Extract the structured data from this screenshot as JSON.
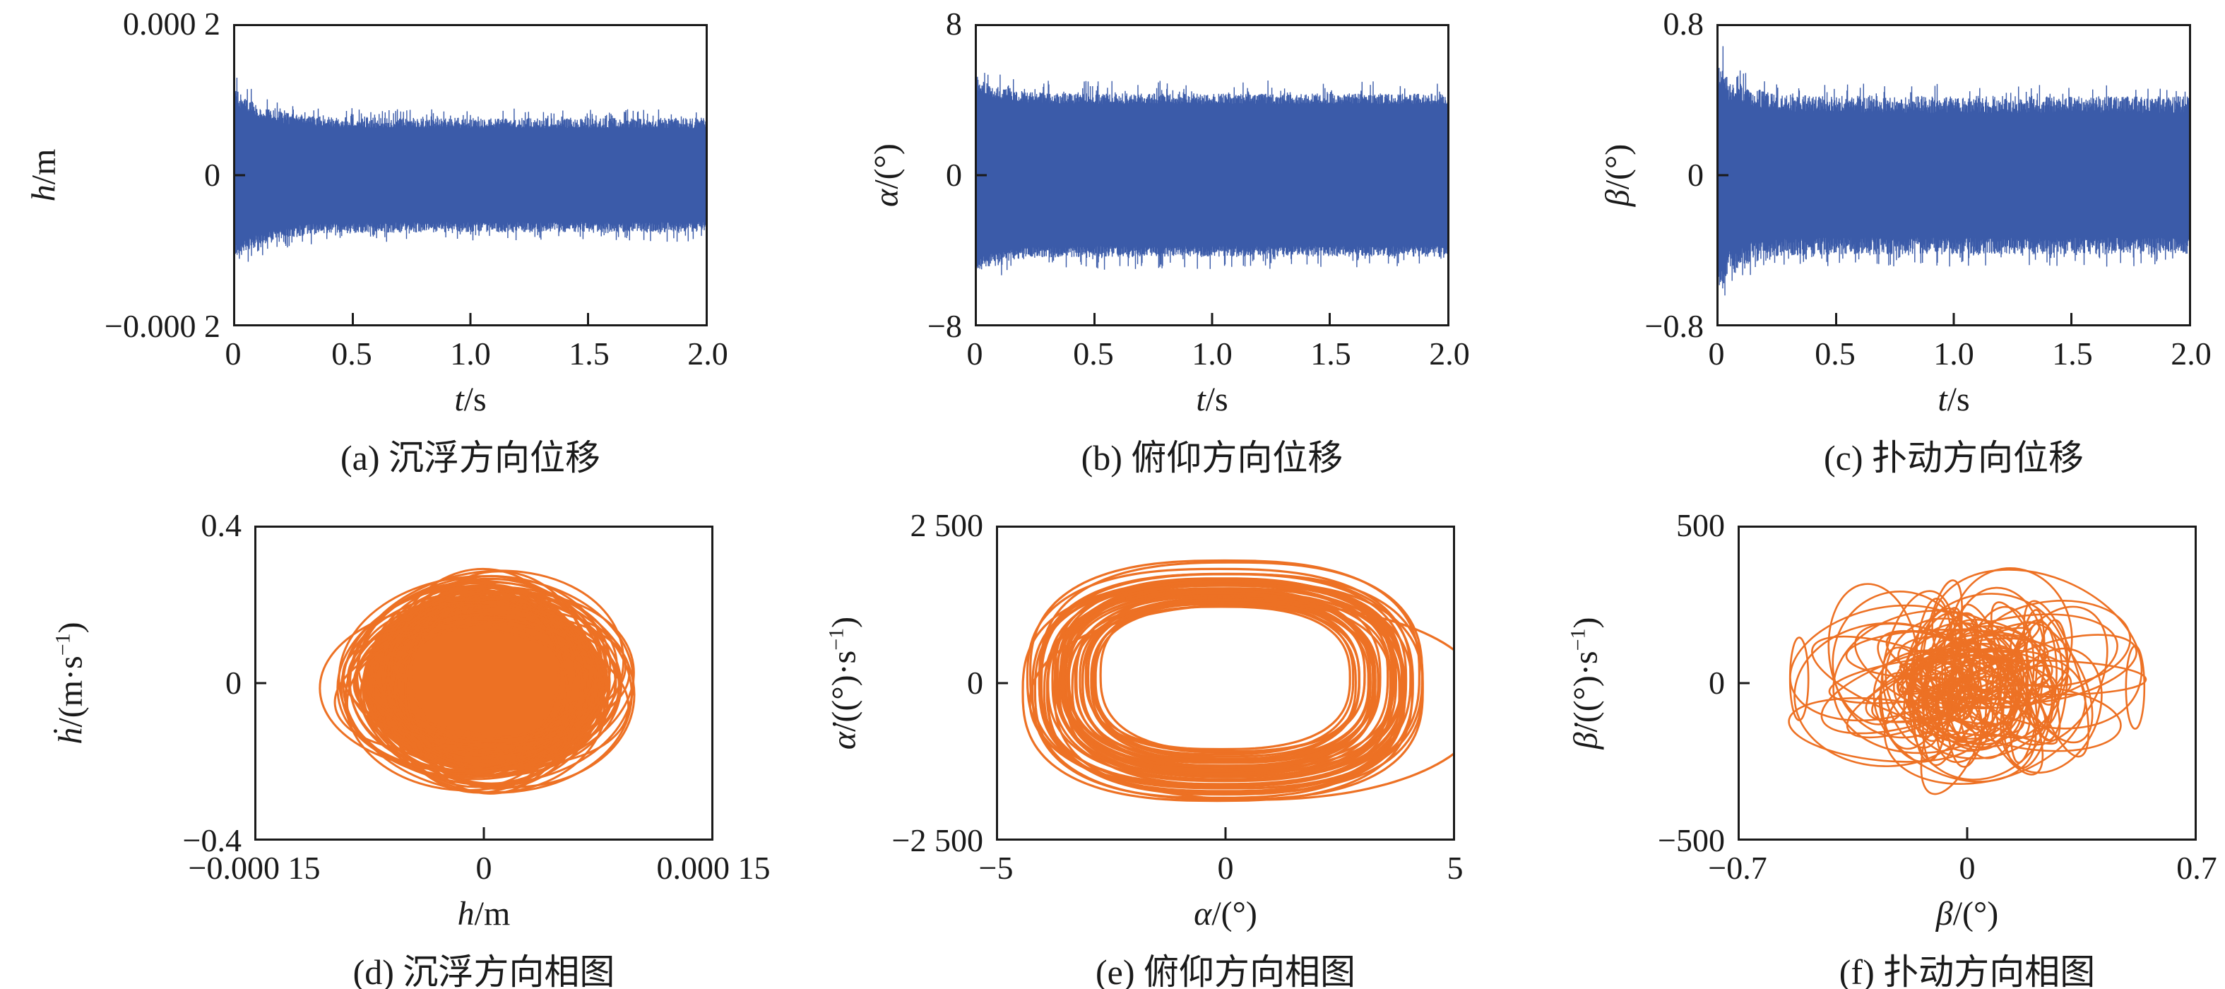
{
  "colors": {
    "signal_blue": "#3B5BA9",
    "phase_orange": "#ED7124",
    "axis_black": "#1A1A1A",
    "background": "#FFFFFF"
  },
  "chart_data": [
    {
      "id": "a",
      "type": "line",
      "subtype": "time-series",
      "caption": "(a) 沉浮方向位移",
      "xlabel": {
        "var": "t",
        "rest": "/s",
        "sup": "",
        "close": ""
      },
      "ylabel": {
        "var": "h",
        "rest": "/m",
        "sup": "",
        "close": ""
      },
      "xticks": [
        "0",
        "0.5",
        "1.0",
        "1.5",
        "2.0"
      ],
      "yticks": [
        "0.000 2",
        "0",
        "−0.000 2"
      ],
      "xlim": [
        0,
        2
      ],
      "ylim": [
        -0.0002,
        0.0002
      ],
      "grid": false,
      "legend": "none",
      "series": {
        "name": "h(t)",
        "color_key": "signal_blue",
        "steady_amplitude": 7e-05,
        "initial_peak": 0.000105,
        "settle_tau_s": 0.13,
        "jitter": 0.1,
        "spike_rate": 0.1,
        "chaotic_transient": false
      },
      "render": {
        "kind": "band"
      }
    },
    {
      "id": "b",
      "type": "line",
      "subtype": "time-series",
      "caption": "(b) 俯仰方向位移",
      "xlabel": {
        "var": "t",
        "rest": "/s",
        "sup": "",
        "close": ""
      },
      "ylabel": {
        "var": "α",
        "rest": "/(°)",
        "sup": "",
        "close": ""
      },
      "xticks": [
        "0",
        "0.5",
        "1.0",
        "1.5",
        "2.0"
      ],
      "yticks": [
        "8",
        "0",
        "−8"
      ],
      "xlim": [
        0,
        2
      ],
      "ylim": [
        -8,
        8
      ],
      "grid": false,
      "legend": "none",
      "series": {
        "name": "α(t)",
        "color_key": "signal_blue",
        "steady_amplitude": 4.1,
        "initial_peak": 4.9,
        "settle_tau_s": 0.1,
        "jitter": 0.07,
        "spike_rate": 0.08,
        "chaotic_transient": false
      },
      "render": {
        "kind": "band"
      }
    },
    {
      "id": "c",
      "type": "line",
      "subtype": "time-series",
      "caption": "(c) 扑动方向位移",
      "xlabel": {
        "var": "t",
        "rest": "/s",
        "sup": "",
        "close": ""
      },
      "ylabel": {
        "var": "β",
        "rest": "/(°)",
        "sup": "",
        "close": ""
      },
      "xticks": [
        "0",
        "0.5",
        "1.0",
        "1.5",
        "2.0"
      ],
      "yticks": [
        "0.8",
        "0",
        "−0.8"
      ],
      "xlim": [
        0,
        2
      ],
      "ylim": [
        -0.8,
        0.8
      ],
      "grid": false,
      "legend": "none",
      "series": {
        "name": "β(t)",
        "color_key": "signal_blue",
        "steady_amplitude": 0.38,
        "initial_peak": 0.48,
        "settle_tau_s": 0.09,
        "jitter": 0.12,
        "spike_rate": 0.12,
        "chaotic_transient": true
      },
      "render": {
        "kind": "band"
      }
    },
    {
      "id": "d",
      "type": "line",
      "subtype": "phase-portrait",
      "caption": "(d) 沉浮方向相图",
      "xlabel": {
        "var": "h",
        "rest": "/m",
        "sup": "",
        "close": ""
      },
      "ylabel": {
        "var": "ḣ",
        "rest": "/(m·s",
        "sup": "−1",
        "close": ")"
      },
      "xticks": [
        "−0.000 15",
        "0",
        "0.000 15"
      ],
      "yticks": [
        "0.4",
        "0",
        "−0.4"
      ],
      "xlim": [
        -0.00015,
        0.00015
      ],
      "ylim": [
        -0.4,
        0.4
      ],
      "grid": false,
      "legend": "none",
      "series": {
        "name": "ḣ vs h",
        "color_key": "phase_orange",
        "x_extent": 0.0001,
        "y_extent": 0.27,
        "loops": 55
      },
      "render": {
        "kind": "blob"
      }
    },
    {
      "id": "e",
      "type": "line",
      "subtype": "phase-portrait",
      "caption": "(e) 俯仰方向相图",
      "xlabel": {
        "var": "α",
        "rest": "/(°)",
        "sup": "",
        "close": ""
      },
      "ylabel": {
        "var": "α̇",
        "rest": "/((°)·s",
        "sup": "−1",
        "close": ")"
      },
      "xticks": [
        "−5",
        "0",
        "5"
      ],
      "yticks": [
        "2 500",
        "0",
        "−2 500"
      ],
      "xlim": [
        -5,
        5
      ],
      "ylim": [
        -2500,
        2500
      ],
      "grid": false,
      "legend": "none",
      "series": {
        "name": "α̇ vs α",
        "color_key": "phase_orange",
        "outer_extent": [
          4.5,
          1950
        ],
        "inner_extent": [
          2.8,
          1100
        ],
        "squareness": 2.6,
        "loops": 46,
        "outlier_loop": true
      },
      "render": {
        "kind": "ring"
      }
    },
    {
      "id": "f",
      "type": "line",
      "subtype": "phase-portrait",
      "caption": "(f) 扑动方向相图",
      "xlabel": {
        "var": "β",
        "rest": "/(°)",
        "sup": "",
        "close": ""
      },
      "ylabel": {
        "var": "β̇",
        "rest": "/((°)·s",
        "sup": "−1",
        "close": ")"
      },
      "xticks": [
        "−0.7",
        "0",
        "0.7"
      ],
      "yticks": [
        "500",
        "0",
        "−500"
      ],
      "xlim": [
        -0.7,
        0.7
      ],
      "ylim": [
        -500,
        500
      ],
      "grid": false,
      "legend": "none",
      "series": {
        "name": "β̇ vs β",
        "color_key": "phase_orange",
        "x_extent": 0.55,
        "y_extent": 370,
        "loops": 95
      },
      "render": {
        "kind": "tangle"
      }
    }
  ]
}
